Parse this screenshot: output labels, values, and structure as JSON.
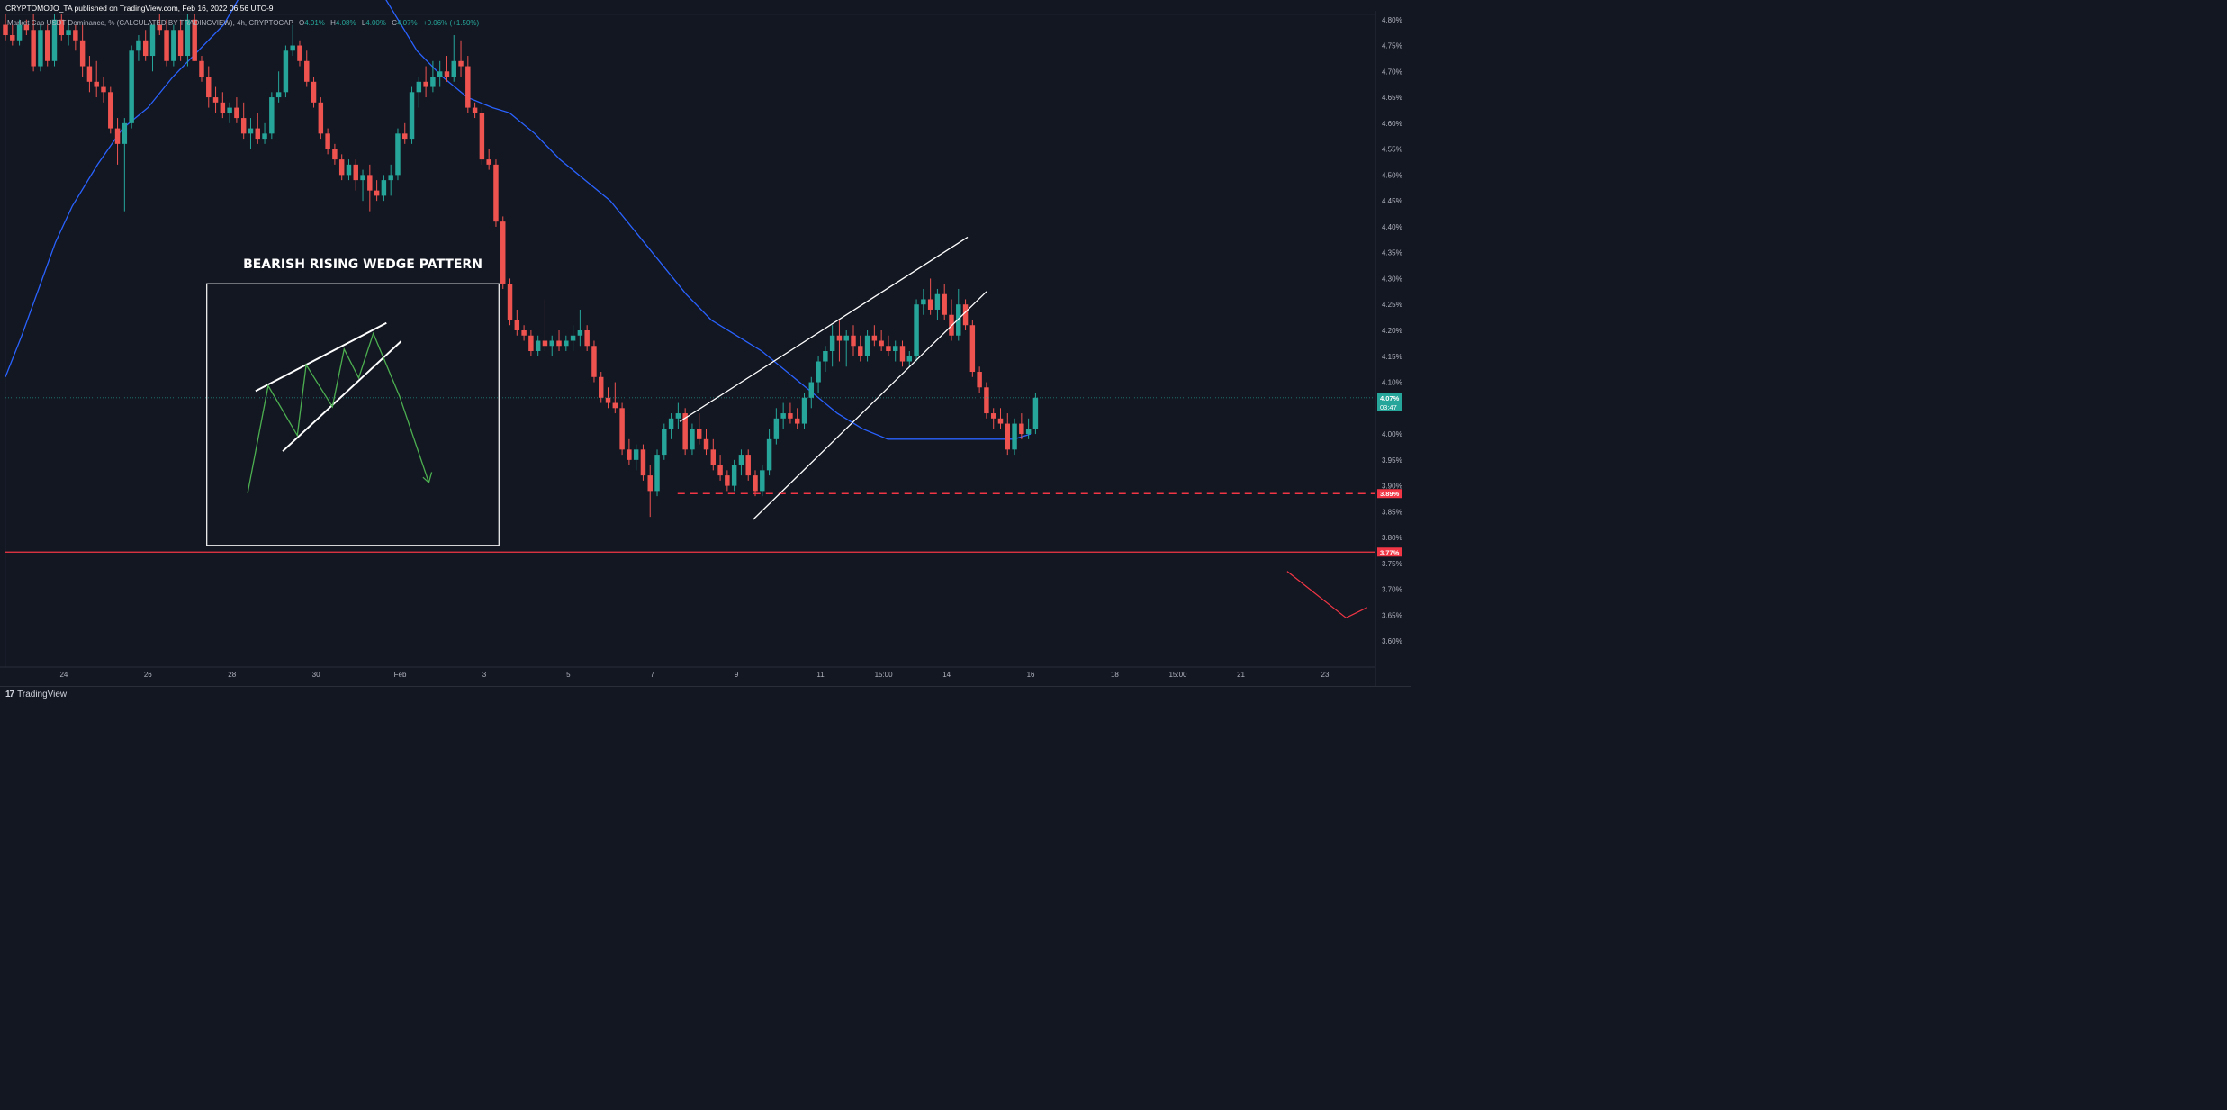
{
  "header": {
    "published_line": "CRYPTOMOJO_TA published on TradingView.com, Feb 16, 2022 06:56 UTC-9",
    "symbol_line": "Market Cap USDT Dominance, % (CALCULATED BY TRADINGVIEW), 4h, CRYPTOCAP",
    "ohlc": [
      {
        "label": "O",
        "value": "4.01%"
      },
      {
        "label": "H",
        "value": "4.08%"
      },
      {
        "label": "L",
        "value": "4.00%"
      },
      {
        "label": "C",
        "value": "4.07%"
      }
    ],
    "change": "+0.06% (+1.50%)"
  },
  "footer": {
    "brand": "TradingView",
    "brand_mark": "17"
  },
  "colors": {
    "background": "#131722",
    "bull": "#26a69a",
    "bear": "#ef5350",
    "ma": "#2962ff",
    "support": "#f23645",
    "wedge_lines": "#ffffff",
    "inset_zigzag": "#4caf50",
    "current_price_label": "#26a69a",
    "axis_text": "#b2b5be"
  },
  "chart_data": {
    "type": "candlestick",
    "title": "BEARISH RISING WEDGE PATTERN",
    "price_axis": {
      "unit": "%",
      "ylim": [
        3.55,
        4.81
      ],
      "ticks": [
        "4.80%",
        "4.75%",
        "4.70%",
        "4.65%",
        "4.60%",
        "4.55%",
        "4.50%",
        "4.45%",
        "4.40%",
        "4.35%",
        "4.30%",
        "4.25%",
        "4.20%",
        "4.15%",
        "4.10%",
        "4.05%",
        "4.00%",
        "3.95%",
        "3.90%",
        "3.85%",
        "3.80%",
        "3.75%",
        "3.70%",
        "3.65%",
        "3.60%"
      ]
    },
    "time_axis": {
      "labels": [
        {
          "text": "24",
          "t": 24.0
        },
        {
          "text": "26",
          "t": 26.0
        },
        {
          "text": "28",
          "t": 28.0
        },
        {
          "text": "30",
          "t": 30.0
        },
        {
          "text": "Feb",
          "t": 32.0
        },
        {
          "text": "3",
          "t": 34.0
        },
        {
          "text": "5",
          "t": 36.0
        },
        {
          "text": "7",
          "t": 38.0
        },
        {
          "text": "9",
          "t": 40.0
        },
        {
          "text": "11",
          "t": 42.0
        },
        {
          "text": "15:00",
          "t": 43.5
        },
        {
          "text": "14",
          "t": 45.0
        },
        {
          "text": "16",
          "t": 47.0
        },
        {
          "text": "18",
          "t": 49.0
        },
        {
          "text": "15:00",
          "t": 50.5
        },
        {
          "text": "21",
          "t": 52.0
        },
        {
          "text": "23",
          "t": 54.0
        }
      ],
      "range": [
        22.61,
        55.2
      ],
      "candle_step": 0.1667
    },
    "candles_start": 22.61,
    "candles_ohlc": [
      [
        4.79,
        4.81,
        4.76,
        4.77
      ],
      [
        4.77,
        4.79,
        4.75,
        4.76
      ],
      [
        4.76,
        4.8,
        4.75,
        4.79
      ],
      [
        4.79,
        4.8,
        4.77,
        4.78
      ],
      [
        4.78,
        4.81,
        4.7,
        4.71
      ],
      [
        4.71,
        4.79,
        4.7,
        4.78
      ],
      [
        4.78,
        4.79,
        4.71,
        4.72
      ],
      [
        4.72,
        4.81,
        4.71,
        4.8
      ],
      [
        4.8,
        4.81,
        4.76,
        4.77
      ],
      [
        4.77,
        4.8,
        4.75,
        4.78
      ],
      [
        4.78,
        4.79,
        4.74,
        4.76
      ],
      [
        4.76,
        4.79,
        4.69,
        4.71
      ],
      [
        4.71,
        4.73,
        4.66,
        4.68
      ],
      [
        4.68,
        4.72,
        4.65,
        4.67
      ],
      [
        4.67,
        4.69,
        4.64,
        4.66
      ],
      [
        4.66,
        4.67,
        4.58,
        4.59
      ],
      [
        4.59,
        4.61,
        4.52,
        4.56
      ],
      [
        4.56,
        4.61,
        4.43,
        4.6
      ],
      [
        4.6,
        4.75,
        4.59,
        4.74
      ],
      [
        4.74,
        4.77,
        4.72,
        4.76
      ],
      [
        4.76,
        4.78,
        4.72,
        4.73
      ],
      [
        4.73,
        4.79,
        4.7,
        4.79
      ],
      [
        4.79,
        4.81,
        4.77,
        4.78
      ],
      [
        4.78,
        4.8,
        4.71,
        4.72
      ],
      [
        4.72,
        4.79,
        4.71,
        4.78
      ],
      [
        4.78,
        4.8,
        4.72,
        4.73
      ],
      [
        4.73,
        4.81,
        4.71,
        4.8
      ],
      [
        4.8,
        4.81,
        4.72,
        4.72
      ],
      [
        4.72,
        4.73,
        4.68,
        4.69
      ],
      [
        4.69,
        4.71,
        4.63,
        4.65
      ],
      [
        4.65,
        4.67,
        4.62,
        4.64
      ],
      [
        4.64,
        4.66,
        4.61,
        4.62
      ],
      [
        4.62,
        4.64,
        4.6,
        4.63
      ],
      [
        4.63,
        4.65,
        4.6,
        4.61
      ],
      [
        4.61,
        4.64,
        4.57,
        4.58
      ],
      [
        4.58,
        4.61,
        4.55,
        4.59
      ],
      [
        4.59,
        4.62,
        4.56,
        4.57
      ],
      [
        4.57,
        4.6,
        4.56,
        4.58
      ],
      [
        4.58,
        4.66,
        4.57,
        4.65
      ],
      [
        4.65,
        4.7,
        4.64,
        4.66
      ],
      [
        4.66,
        4.75,
        4.65,
        4.74
      ],
      [
        4.74,
        4.79,
        4.73,
        4.75
      ],
      [
        4.75,
        4.76,
        4.71,
        4.72
      ],
      [
        4.72,
        4.74,
        4.67,
        4.68
      ],
      [
        4.68,
        4.69,
        4.63,
        4.64
      ],
      [
        4.64,
        4.65,
        4.57,
        4.58
      ],
      [
        4.58,
        4.59,
        4.54,
        4.55
      ],
      [
        4.55,
        4.56,
        4.52,
        4.53
      ],
      [
        4.53,
        4.54,
        4.49,
        4.5
      ],
      [
        4.5,
        4.53,
        4.49,
        4.52
      ],
      [
        4.52,
        4.53,
        4.47,
        4.49
      ],
      [
        4.49,
        4.51,
        4.45,
        4.5
      ],
      [
        4.5,
        4.52,
        4.43,
        4.47
      ],
      [
        4.47,
        4.49,
        4.45,
        4.46
      ],
      [
        4.46,
        4.5,
        4.45,
        4.49
      ],
      [
        4.49,
        4.52,
        4.46,
        4.5
      ],
      [
        4.5,
        4.59,
        4.49,
        4.58
      ],
      [
        4.58,
        4.6,
        4.56,
        4.57
      ],
      [
        4.57,
        4.67,
        4.56,
        4.66
      ],
      [
        4.66,
        4.69,
        4.63,
        4.68
      ],
      [
        4.68,
        4.71,
        4.65,
        4.67
      ],
      [
        4.67,
        4.72,
        4.66,
        4.69
      ],
      [
        4.69,
        4.72,
        4.67,
        4.7
      ],
      [
        4.7,
        4.73,
        4.68,
        4.69
      ],
      [
        4.69,
        4.77,
        4.68,
        4.72
      ],
      [
        4.72,
        4.76,
        4.69,
        4.71
      ],
      [
        4.71,
        4.73,
        4.62,
        4.63
      ],
      [
        4.63,
        4.64,
        4.61,
        4.62
      ],
      [
        4.62,
        4.63,
        4.52,
        4.53
      ],
      [
        4.53,
        4.55,
        4.51,
        4.52
      ],
      [
        4.52,
        4.53,
        4.4,
        4.41
      ],
      [
        4.41,
        4.42,
        4.28,
        4.29
      ],
      [
        4.29,
        4.3,
        4.21,
        4.22
      ],
      [
        4.22,
        4.24,
        4.19,
        4.2
      ],
      [
        4.2,
        4.21,
        4.18,
        4.19
      ],
      [
        4.19,
        4.2,
        4.15,
        4.16
      ],
      [
        4.16,
        4.19,
        4.15,
        4.18
      ],
      [
        4.18,
        4.26,
        4.16,
        4.17
      ],
      [
        4.17,
        4.19,
        4.15,
        4.18
      ],
      [
        4.18,
        4.2,
        4.16,
        4.17
      ],
      [
        4.17,
        4.19,
        4.16,
        4.18
      ],
      [
        4.18,
        4.21,
        4.16,
        4.19
      ],
      [
        4.19,
        4.24,
        4.17,
        4.2
      ],
      [
        4.2,
        4.21,
        4.16,
        4.17
      ],
      [
        4.17,
        4.18,
        4.1,
        4.11
      ],
      [
        4.11,
        4.12,
        4.06,
        4.07
      ],
      [
        4.07,
        4.09,
        4.05,
        4.06
      ],
      [
        4.06,
        4.1,
        4.04,
        4.05
      ],
      [
        4.05,
        4.06,
        3.96,
        3.97
      ],
      [
        3.97,
        3.99,
        3.94,
        3.95
      ],
      [
        3.95,
        3.98,
        3.93,
        3.97
      ],
      [
        3.97,
        3.98,
        3.91,
        3.92
      ],
      [
        3.92,
        3.94,
        3.84,
        3.89
      ],
      [
        3.89,
        3.97,
        3.88,
        3.96
      ],
      [
        3.96,
        4.02,
        3.95,
        4.01
      ],
      [
        4.01,
        4.04,
        3.99,
        4.03
      ],
      [
        4.03,
        4.06,
        4.01,
        4.04
      ],
      [
        4.04,
        4.05,
        3.96,
        3.97
      ],
      [
        3.97,
        4.02,
        3.96,
        4.01
      ],
      [
        4.01,
        4.04,
        3.98,
        3.99
      ],
      [
        3.99,
        4.01,
        3.96,
        3.97
      ],
      [
        3.97,
        3.99,
        3.93,
        3.94
      ],
      [
        3.94,
        3.96,
        3.91,
        3.92
      ],
      [
        3.92,
        3.93,
        3.89,
        3.9
      ],
      [
        3.9,
        3.95,
        3.89,
        3.94
      ],
      [
        3.94,
        3.97,
        3.92,
        3.96
      ],
      [
        3.96,
        3.97,
        3.91,
        3.92
      ],
      [
        3.92,
        3.93,
        3.88,
        3.89
      ],
      [
        3.89,
        3.94,
        3.88,
        3.93
      ],
      [
        3.93,
        4.01,
        3.92,
        3.99
      ],
      [
        3.99,
        4.05,
        3.98,
        4.03
      ],
      [
        4.03,
        4.06,
        4.01,
        4.04
      ],
      [
        4.04,
        4.06,
        4.02,
        4.03
      ],
      [
        4.03,
        4.05,
        4.01,
        4.02
      ],
      [
        4.02,
        4.08,
        4.01,
        4.07
      ],
      [
        4.07,
        4.11,
        4.05,
        4.1
      ],
      [
        4.1,
        4.15,
        4.08,
        4.14
      ],
      [
        4.14,
        4.17,
        4.12,
        4.16
      ],
      [
        4.16,
        4.21,
        4.13,
        4.19
      ],
      [
        4.19,
        4.22,
        4.14,
        4.18
      ],
      [
        4.18,
        4.2,
        4.13,
        4.19
      ],
      [
        4.19,
        4.21,
        4.15,
        4.17
      ],
      [
        4.17,
        4.19,
        4.14,
        4.15
      ],
      [
        4.15,
        4.2,
        4.14,
        4.19
      ],
      [
        4.19,
        4.21,
        4.17,
        4.18
      ],
      [
        4.18,
        4.2,
        4.16,
        4.17
      ],
      [
        4.17,
        4.19,
        4.15,
        4.16
      ],
      [
        4.16,
        4.18,
        4.14,
        4.17
      ],
      [
        4.17,
        4.18,
        4.13,
        4.14
      ],
      [
        4.14,
        4.16,
        4.13,
        4.15
      ],
      [
        4.15,
        4.26,
        4.14,
        4.25
      ],
      [
        4.25,
        4.28,
        4.23,
        4.26
      ],
      [
        4.26,
        4.3,
        4.23,
        4.24
      ],
      [
        4.24,
        4.28,
        4.22,
        4.27
      ],
      [
        4.27,
        4.29,
        4.22,
        4.23
      ],
      [
        4.23,
        4.26,
        4.18,
        4.19
      ],
      [
        4.19,
        4.28,
        4.18,
        4.25
      ],
      [
        4.25,
        4.26,
        4.2,
        4.21
      ],
      [
        4.21,
        4.22,
        4.11,
        4.12
      ],
      [
        4.12,
        4.13,
        4.08,
        4.09
      ],
      [
        4.09,
        4.1,
        4.03,
        4.04
      ],
      [
        4.04,
        4.05,
        4.01,
        4.03
      ],
      [
        4.03,
        4.05,
        4.01,
        4.02
      ],
      [
        4.02,
        4.04,
        3.96,
        3.97
      ],
      [
        3.97,
        4.03,
        3.96,
        4.02
      ],
      [
        4.02,
        4.04,
        3.99,
        4.0
      ],
      [
        4.0,
        4.03,
        3.99,
        4.01
      ],
      [
        4.01,
        4.08,
        4.0,
        4.07
      ]
    ],
    "moving_average": {
      "color": "#2962ff",
      "points": [
        [
          22.61,
          4.11
        ],
        [
          23.0,
          4.19
        ],
        [
          23.4,
          4.28
        ],
        [
          23.8,
          4.37
        ],
        [
          24.2,
          4.44
        ],
        [
          24.8,
          4.52
        ],
        [
          25.4,
          4.59
        ],
        [
          26.0,
          4.63
        ],
        [
          26.6,
          4.69
        ],
        [
          27.2,
          4.74
        ],
        [
          27.8,
          4.79
        ],
        [
          28.3,
          4.86
        ],
        [
          28.8,
          4.92
        ],
        [
          29.2,
          4.96
        ],
        [
          29.6,
          5.0
        ],
        [
          30.0,
          5.02
        ],
        [
          30.6,
          4.98
        ],
        [
          31.2,
          4.9
        ],
        [
          31.8,
          4.82
        ],
        [
          32.4,
          4.74
        ],
        [
          33.0,
          4.69
        ],
        [
          33.6,
          4.65
        ],
        [
          34.2,
          4.63
        ],
        [
          34.6,
          4.62
        ],
        [
          35.2,
          4.58
        ],
        [
          35.8,
          4.53
        ],
        [
          36.4,
          4.49
        ],
        [
          37.0,
          4.45
        ],
        [
          37.6,
          4.39
        ],
        [
          38.2,
          4.33
        ],
        [
          38.8,
          4.27
        ],
        [
          39.4,
          4.22
        ],
        [
          40.0,
          4.19
        ],
        [
          40.6,
          4.16
        ],
        [
          41.2,
          4.12
        ],
        [
          41.8,
          4.08
        ],
        [
          42.4,
          4.04
        ],
        [
          43.0,
          4.01
        ],
        [
          43.6,
          3.99
        ],
        [
          44.2,
          3.99
        ],
        [
          44.8,
          3.99
        ],
        [
          45.4,
          3.99
        ],
        [
          46.0,
          3.99
        ],
        [
          46.6,
          3.99
        ],
        [
          47.0,
          4.0
        ]
      ]
    },
    "current_price": {
      "value": 4.07,
      "label": "4.07%",
      "countdown": "03:47"
    },
    "levels": [
      {
        "value": 3.885,
        "label": "3.89%",
        "style": "dashed",
        "x_from": 38.6
      },
      {
        "value": 3.772,
        "label": "3.77%",
        "style": "solid",
        "x_from": 22.61
      }
    ],
    "wedge_lines": [
      {
        "name": "wedge-upper-line",
        "from": [
          38.65,
          4.024
        ],
        "to": [
          45.5,
          4.38
        ]
      },
      {
        "name": "wedge-lower-line",
        "from": [
          40.4,
          3.835
        ],
        "to": [
          45.95,
          4.275
        ]
      }
    ],
    "projection_line": {
      "points": [
        [
          53.1,
          3.735
        ],
        [
          54.5,
          3.645
        ],
        [
          55.0,
          3.665
        ]
      ]
    },
    "annotation_box": {
      "heading": "BEARISH RISING WEDGE PATTERN",
      "time_range": [
        27.4,
        34.35
      ],
      "price_range": [
        3.785,
        4.29
      ]
    }
  }
}
